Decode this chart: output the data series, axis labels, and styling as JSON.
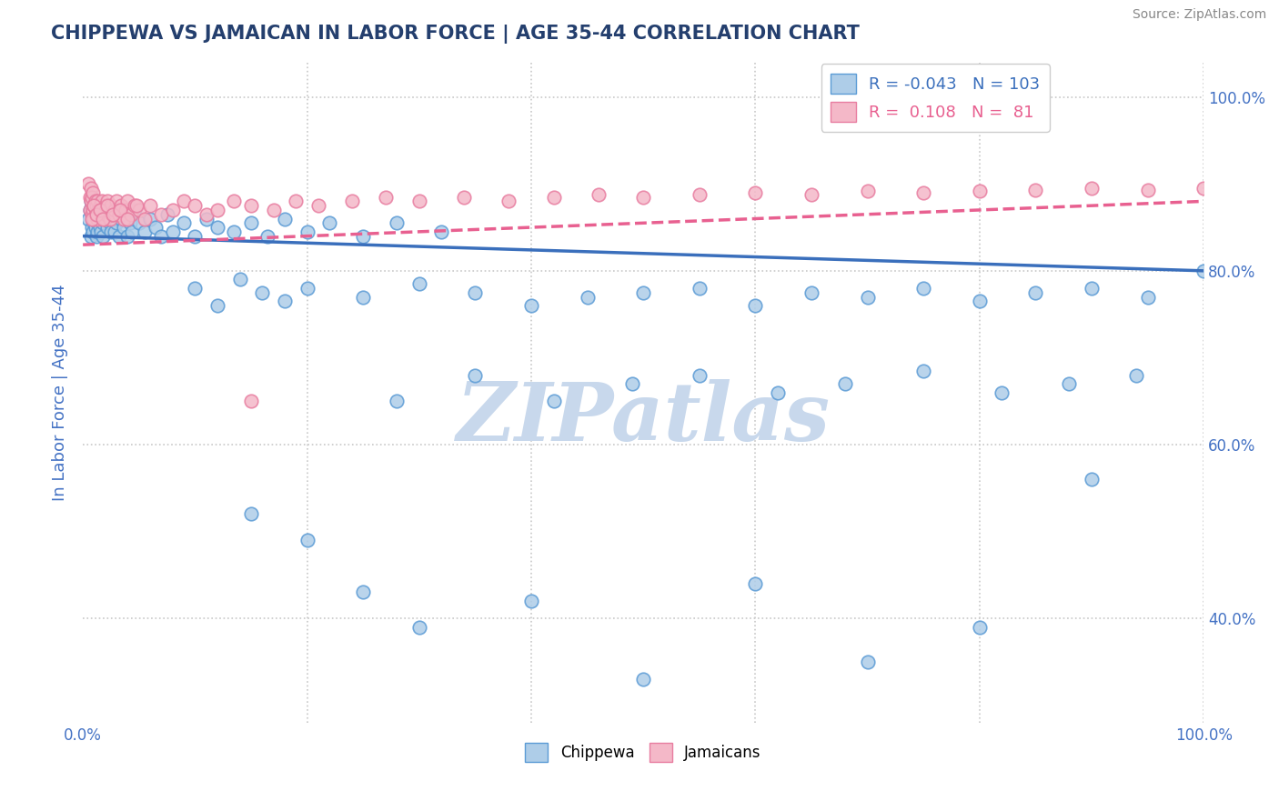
{
  "title": "CHIPPEWA VS JAMAICAN IN LABOR FORCE | AGE 35-44 CORRELATION CHART",
  "source": "Source: ZipAtlas.com",
  "ylabel": "In Labor Force | Age 35-44",
  "legend_labels": [
    "Chippewa",
    "Jamaicans"
  ],
  "R_chippewa": -0.043,
  "N_chippewa": 103,
  "R_jamaican": 0.108,
  "N_jamaican": 81,
  "blue_face": "#aecde8",
  "blue_edge": "#5b9bd5",
  "pink_face": "#f4b8c8",
  "pink_edge": "#e87da0",
  "blue_line": "#3a6fbc",
  "pink_line": "#e86090",
  "title_color": "#243f6e",
  "axis_color": "#4472c4",
  "source_color": "#888888",
  "watermark": "ZIPatlas",
  "watermark_color": "#c8d8ec",
  "xlim": [
    0.0,
    1.0
  ],
  "ylim": [
    0.28,
    1.04
  ],
  "blue_x": [
    0.005,
    0.006,
    0.007,
    0.007,
    0.008,
    0.008,
    0.009,
    0.009,
    0.01,
    0.01,
    0.011,
    0.011,
    0.012,
    0.012,
    0.013,
    0.013,
    0.014,
    0.015,
    0.015,
    0.016,
    0.017,
    0.018,
    0.018,
    0.019,
    0.02,
    0.022,
    0.023,
    0.024,
    0.025,
    0.026,
    0.028,
    0.03,
    0.032,
    0.034,
    0.036,
    0.038,
    0.04,
    0.042,
    0.044,
    0.046,
    0.05,
    0.055,
    0.06,
    0.065,
    0.07,
    0.075,
    0.08,
    0.09,
    0.1,
    0.11,
    0.12,
    0.135,
    0.15,
    0.165,
    0.18,
    0.2,
    0.22,
    0.25,
    0.28,
    0.32,
    0.1,
    0.12,
    0.14,
    0.16,
    0.18,
    0.2,
    0.25,
    0.3,
    0.35,
    0.4,
    0.45,
    0.5,
    0.55,
    0.6,
    0.65,
    0.7,
    0.75,
    0.8,
    0.85,
    0.9,
    0.95,
    1.0,
    0.28,
    0.35,
    0.42,
    0.49,
    0.55,
    0.62,
    0.68,
    0.75,
    0.82,
    0.88,
    0.94,
    0.2,
    0.15,
    0.25,
    0.3,
    0.4,
    0.5,
    0.6,
    0.7,
    0.8,
    0.9
  ],
  "blue_y": [
    0.86,
    0.87,
    0.84,
    0.88,
    0.85,
    0.875,
    0.86,
    0.845,
    0.87,
    0.855,
    0.865,
    0.85,
    0.84,
    0.875,
    0.855,
    0.845,
    0.87,
    0.86,
    0.85,
    0.845,
    0.865,
    0.855,
    0.84,
    0.875,
    0.86,
    0.85,
    0.87,
    0.855,
    0.845,
    0.865,
    0.845,
    0.855,
    0.84,
    0.86,
    0.85,
    0.865,
    0.84,
    0.855,
    0.845,
    0.87,
    0.855,
    0.845,
    0.86,
    0.85,
    0.84,
    0.865,
    0.845,
    0.855,
    0.84,
    0.86,
    0.85,
    0.845,
    0.855,
    0.84,
    0.86,
    0.845,
    0.855,
    0.84,
    0.855,
    0.845,
    0.78,
    0.76,
    0.79,
    0.775,
    0.765,
    0.78,
    0.77,
    0.785,
    0.775,
    0.76,
    0.77,
    0.775,
    0.78,
    0.76,
    0.775,
    0.77,
    0.78,
    0.765,
    0.775,
    0.78,
    0.77,
    0.8,
    0.65,
    0.68,
    0.65,
    0.67,
    0.68,
    0.66,
    0.67,
    0.685,
    0.66,
    0.67,
    0.68,
    0.49,
    0.52,
    0.43,
    0.39,
    0.42,
    0.33,
    0.44,
    0.35,
    0.39,
    0.56
  ],
  "pink_x": [
    0.005,
    0.006,
    0.006,
    0.007,
    0.007,
    0.008,
    0.008,
    0.009,
    0.009,
    0.01,
    0.01,
    0.011,
    0.011,
    0.012,
    0.013,
    0.013,
    0.014,
    0.015,
    0.016,
    0.017,
    0.018,
    0.019,
    0.02,
    0.021,
    0.022,
    0.023,
    0.024,
    0.025,
    0.026,
    0.028,
    0.03,
    0.032,
    0.034,
    0.036,
    0.038,
    0.04,
    0.043,
    0.046,
    0.05,
    0.055,
    0.06,
    0.07,
    0.08,
    0.09,
    0.1,
    0.11,
    0.12,
    0.135,
    0.15,
    0.17,
    0.19,
    0.21,
    0.24,
    0.27,
    0.3,
    0.34,
    0.38,
    0.42,
    0.46,
    0.5,
    0.55,
    0.6,
    0.65,
    0.7,
    0.75,
    0.8,
    0.85,
    0.9,
    0.95,
    1.0,
    0.008,
    0.01,
    0.012,
    0.015,
    0.018,
    0.022,
    0.027,
    0.033,
    0.04,
    0.048,
    0.15
  ],
  "pink_y": [
    0.9,
    0.885,
    0.87,
    0.895,
    0.88,
    0.865,
    0.885,
    0.87,
    0.89,
    0.875,
    0.86,
    0.88,
    0.865,
    0.875,
    0.86,
    0.88,
    0.87,
    0.875,
    0.865,
    0.88,
    0.87,
    0.86,
    0.875,
    0.865,
    0.88,
    0.87,
    0.86,
    0.875,
    0.865,
    0.87,
    0.88,
    0.865,
    0.875,
    0.86,
    0.87,
    0.88,
    0.865,
    0.875,
    0.87,
    0.86,
    0.875,
    0.865,
    0.87,
    0.88,
    0.875,
    0.865,
    0.87,
    0.88,
    0.875,
    0.87,
    0.88,
    0.875,
    0.88,
    0.885,
    0.88,
    0.885,
    0.88,
    0.885,
    0.888,
    0.885,
    0.888,
    0.89,
    0.888,
    0.892,
    0.89,
    0.892,
    0.893,
    0.895,
    0.893,
    0.895,
    0.86,
    0.875,
    0.865,
    0.87,
    0.86,
    0.875,
    0.865,
    0.87,
    0.86,
    0.875,
    0.65
  ],
  "blue_trend_x": [
    0.0,
    1.0
  ],
  "blue_trend_y": [
    0.84,
    0.8
  ],
  "pink_trend_x": [
    0.0,
    1.0
  ],
  "pink_trend_y": [
    0.83,
    0.88
  ]
}
